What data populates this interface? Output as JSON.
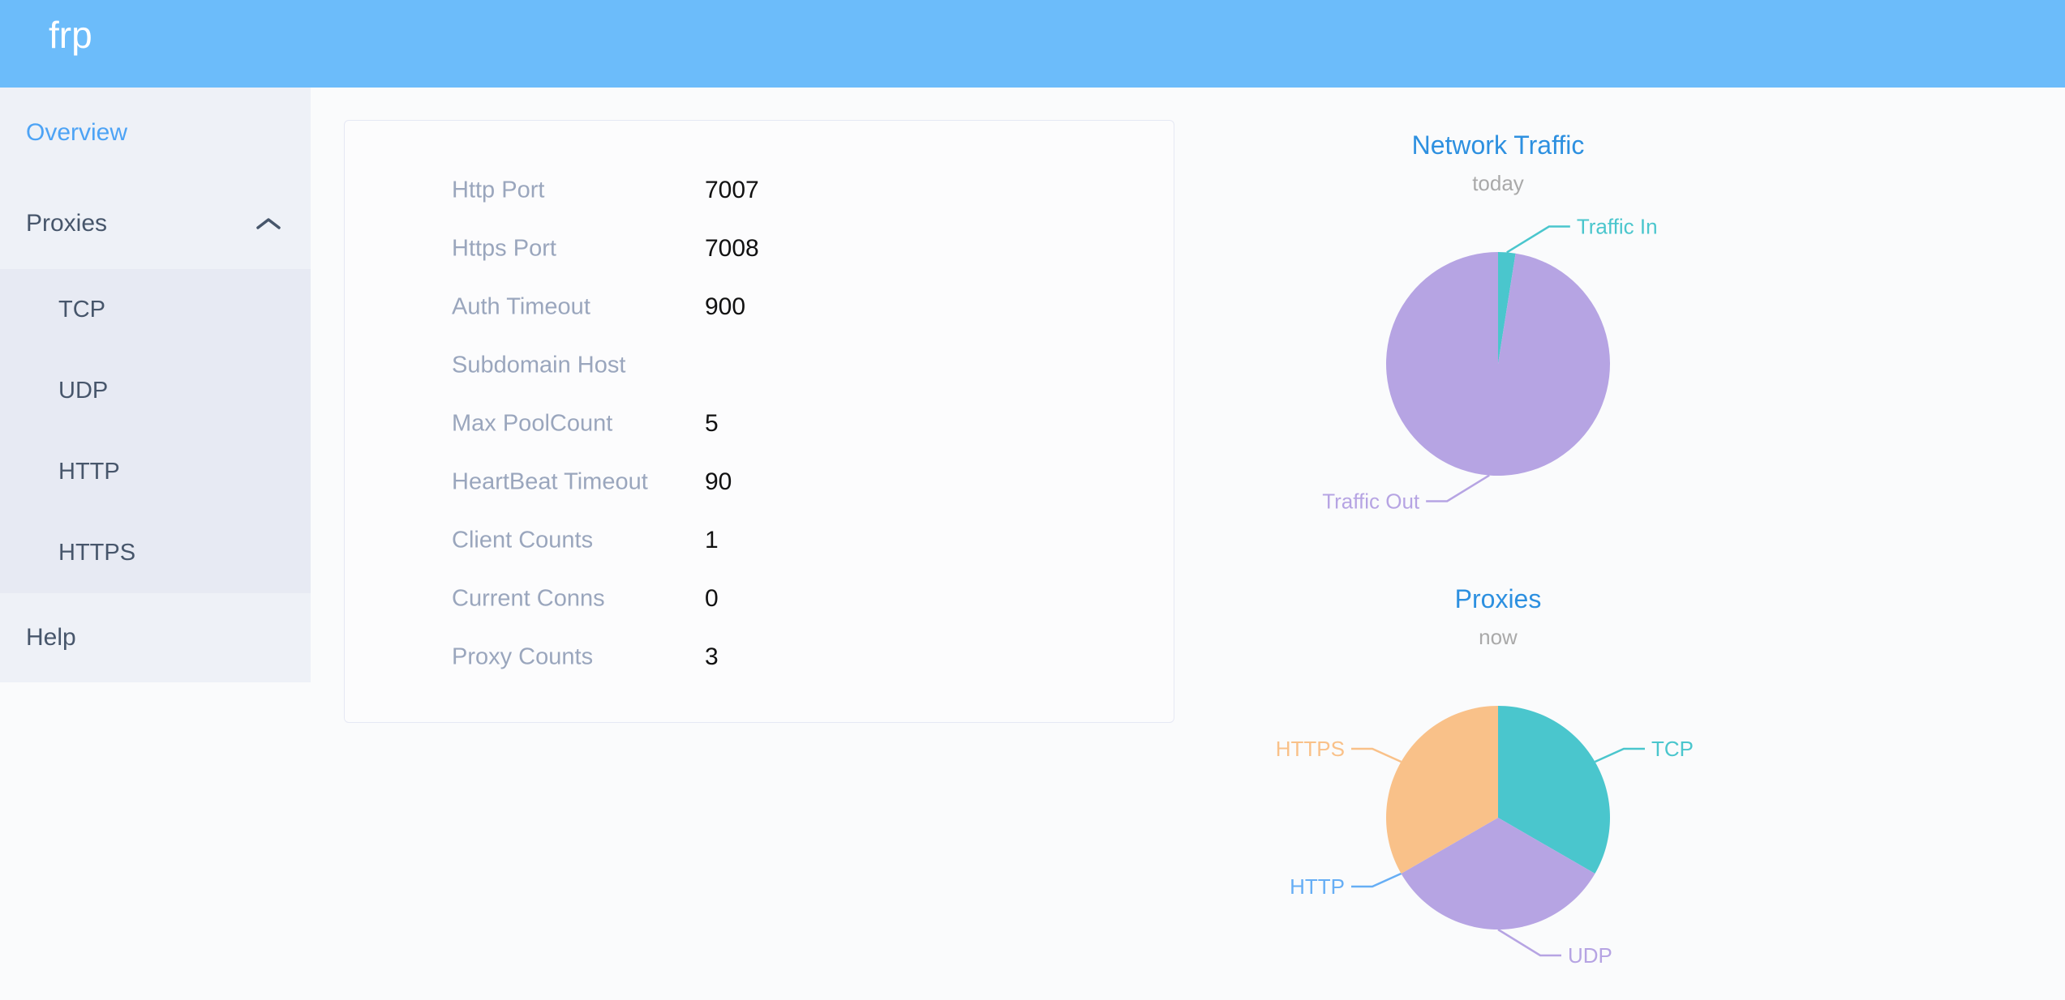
{
  "colors": {
    "header_bg": "#6cbcfa",
    "sidebar_bg": "#eef1f7",
    "submenu_bg": "#e7eaf3",
    "page_bg": "#fafbfc",
    "active_link": "#4da3f5",
    "menu_text": "#47566b",
    "card_bg": "#fcfcfd",
    "card_border": "#e5e8f4",
    "label_text": "#9aa6bd",
    "value_text": "#111111",
    "chart_title": "#2d90e0",
    "chart_subtitle": "#a9a9a9",
    "teal": "#4ac6cd",
    "purple": "#b6a4e3",
    "blue": "#66aef5",
    "orange": "#f9c189"
  },
  "header": {
    "logo_text": "frp"
  },
  "sidebar": {
    "overview_label": "Overview",
    "proxies_label": "Proxies",
    "submenu": [
      "TCP",
      "UDP",
      "HTTP",
      "HTTPS"
    ],
    "help_label": "Help"
  },
  "server_info": {
    "rows": [
      {
        "label": "Http Port",
        "value": "7007"
      },
      {
        "label": "Https Port",
        "value": "7008"
      },
      {
        "label": "Auth Timeout",
        "value": "900"
      },
      {
        "label": "Subdomain Host",
        "value": ""
      },
      {
        "label": "Max PoolCount",
        "value": "5"
      },
      {
        "label": "HeartBeat Timeout",
        "value": "90"
      },
      {
        "label": "Client Counts",
        "value": "1"
      },
      {
        "label": "Current Conns",
        "value": "0"
      },
      {
        "label": "Proxy Counts",
        "value": "3"
      }
    ]
  },
  "chart_data": [
    {
      "type": "pie",
      "title": "Network Traffic",
      "subtitle": "today",
      "legend_position": "none",
      "labels_outside": true,
      "slices": [
        {
          "name": "Traffic In",
          "value": 2.5,
          "color": "#4ac6cd"
        },
        {
          "name": "Traffic Out",
          "value": 97.5,
          "color": "#b6a4e3"
        }
      ]
    },
    {
      "type": "pie",
      "title": "Proxies",
      "subtitle": "now",
      "legend_position": "none",
      "labels_outside": true,
      "slices": [
        {
          "name": "TCP",
          "value": 1,
          "color": "#4ac6cd"
        },
        {
          "name": "UDP",
          "value": 1,
          "color": "#b6a4e3"
        },
        {
          "name": "HTTP",
          "value": 0,
          "color": "#66aef5"
        },
        {
          "name": "HTTPS",
          "value": 1,
          "color": "#f9c189"
        }
      ]
    }
  ]
}
